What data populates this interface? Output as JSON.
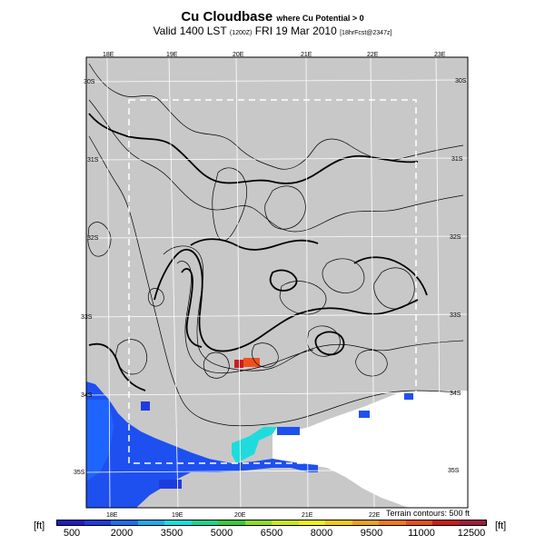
{
  "header": {
    "title": "Cu Cloudbase",
    "title_suffix": "where Cu Potential > 0",
    "valid_main": "Valid 1400 LST",
    "valid_code": "(1200Z)",
    "valid_date": "FRI 19 Mar 2010",
    "valid_tail": "[18hrFcst@2347z]"
  },
  "map": {
    "lon_labels_top": [
      "18E",
      "19E",
      "20E",
      "21E",
      "22E",
      "23E"
    ],
    "lon_labels_bottom": [
      "18E",
      "19E",
      "20E",
      "21E",
      "22E"
    ],
    "lat_labels_left": [
      "30S",
      "31S",
      "32S",
      "33S",
      "34S",
      "35S"
    ],
    "lat_labels_right": [
      "30S",
      "31S",
      "32S",
      "33S",
      "34S",
      "35S"
    ],
    "terrain_note": "Terrain contours: 500 ft",
    "background_color": "#c8c8c8"
  },
  "colorbar": {
    "unit_left": "[ft]",
    "unit_right": "[ft]",
    "ticks": [
      "500",
      "2000",
      "3500",
      "5000",
      "6500",
      "8000",
      "9500",
      "11000",
      "12500"
    ],
    "colors": [
      "#1e1ebe",
      "#1e3cdc",
      "#1e6ef0",
      "#1eaaf0",
      "#1edcdc",
      "#1ed28c",
      "#3cc83c",
      "#8cdc28",
      "#c8e628",
      "#f0f01e",
      "#f0c81e",
      "#f0a01e",
      "#f0781e",
      "#e6501e",
      "#c81e1e",
      "#a01e3c"
    ]
  }
}
